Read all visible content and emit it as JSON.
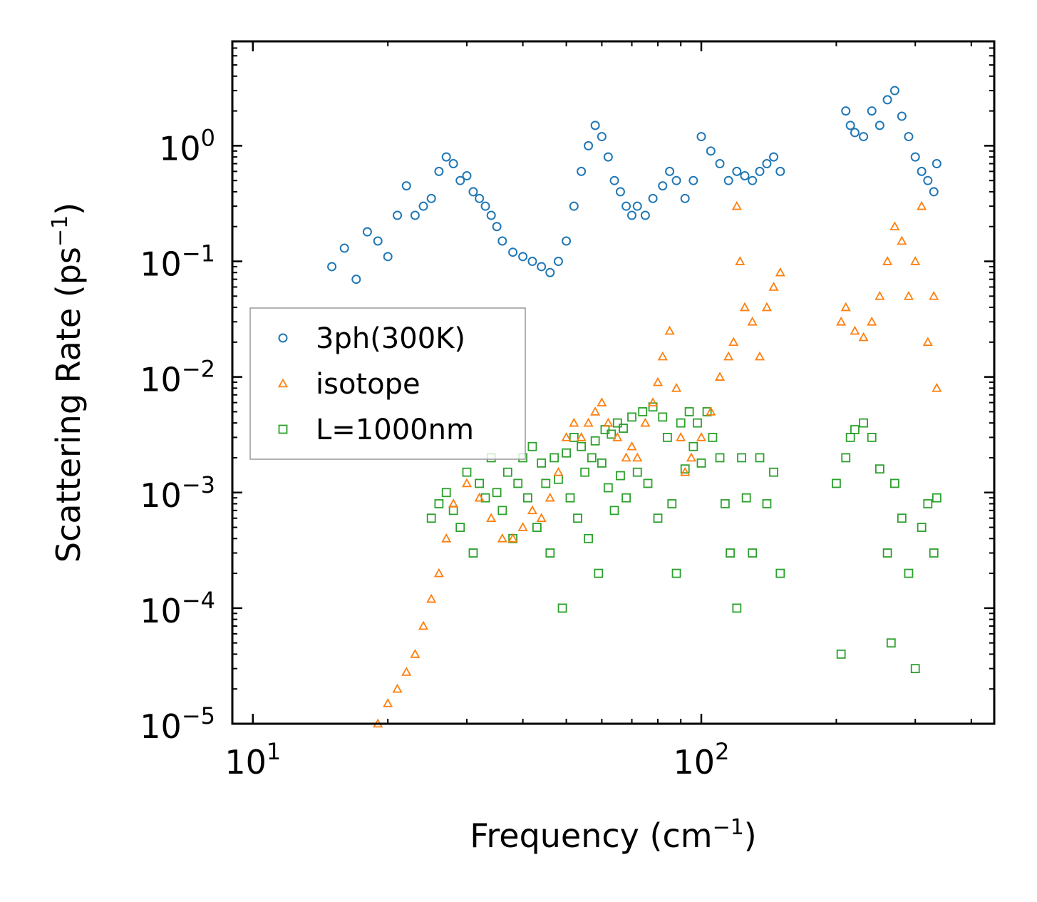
{
  "chart_data": {
    "type": "scatter",
    "xscale": "log",
    "yscale": "log",
    "xlabel": "Frequency (cm⁻¹)",
    "xlabel_parts": [
      "Frequency (cm",
      "−1",
      ")"
    ],
    "ylabel": "Scattering Rate (ps⁻¹)",
    "ylabel_parts": [
      "Scattering Rate (ps",
      "−1",
      ")"
    ],
    "xlim": [
      9,
      450
    ],
    "ylim": [
      1e-05,
      8
    ],
    "xticks": [
      {
        "value": 10,
        "base": "10",
        "exp": "1"
      },
      {
        "value": 100,
        "base": "10",
        "exp": "2"
      }
    ],
    "yticks": [
      {
        "value": 1,
        "base": "10",
        "exp": "0"
      },
      {
        "value": 0.1,
        "base": "10",
        "exp": "−1"
      },
      {
        "value": 0.01,
        "base": "10",
        "exp": "−2"
      },
      {
        "value": 0.001,
        "base": "10",
        "exp": "−3"
      },
      {
        "value": 0.0001,
        "base": "10",
        "exp": "−4"
      },
      {
        "value": 1e-05,
        "base": "10",
        "exp": "−5"
      }
    ],
    "legend": {
      "location": "center-left",
      "entries": [
        "3ph(300K)",
        "isotope",
        "L=1000nm"
      ]
    },
    "series": [
      {
        "name": "3ph(300K)",
        "marker": "circle",
        "color": "#1f77b4",
        "points": [
          [
            15,
            0.09
          ],
          [
            16,
            0.13
          ],
          [
            17,
            0.07
          ],
          [
            18,
            0.18
          ],
          [
            19,
            0.15
          ],
          [
            20,
            0.11
          ],
          [
            21,
            0.25
          ],
          [
            22,
            0.45
          ],
          [
            23,
            0.25
          ],
          [
            24,
            0.3
          ],
          [
            25,
            0.35
          ],
          [
            26,
            0.6
          ],
          [
            27,
            0.8
          ],
          [
            28,
            0.7
          ],
          [
            29,
            0.5
          ],
          [
            30,
            0.55
          ],
          [
            31,
            0.4
          ],
          [
            32,
            0.35
          ],
          [
            33,
            0.3
          ],
          [
            34,
            0.25
          ],
          [
            35,
            0.2
          ],
          [
            36,
            0.15
          ],
          [
            38,
            0.12
          ],
          [
            40,
            0.11
          ],
          [
            42,
            0.1
          ],
          [
            44,
            0.09
          ],
          [
            46,
            0.08
          ],
          [
            48,
            0.1
          ],
          [
            50,
            0.15
          ],
          [
            52,
            0.3
          ],
          [
            54,
            0.6
          ],
          [
            56,
            1.0
          ],
          [
            58,
            1.5
          ],
          [
            60,
            1.2
          ],
          [
            62,
            0.8
          ],
          [
            64,
            0.5
          ],
          [
            66,
            0.4
          ],
          [
            68,
            0.3
          ],
          [
            70,
            0.25
          ],
          [
            72,
            0.3
          ],
          [
            75,
            0.25
          ],
          [
            78,
            0.35
          ],
          [
            82,
            0.45
          ],
          [
            85,
            0.6
          ],
          [
            88,
            0.5
          ],
          [
            92,
            0.35
          ],
          [
            96,
            0.5
          ],
          [
            100,
            1.2
          ],
          [
            105,
            0.9
          ],
          [
            110,
            0.7
          ],
          [
            115,
            0.5
          ],
          [
            120,
            0.6
          ],
          [
            125,
            0.55
          ],
          [
            130,
            0.5
          ],
          [
            135,
            0.6
          ],
          [
            140,
            0.7
          ],
          [
            145,
            0.8
          ],
          [
            150,
            0.6
          ],
          [
            210,
            2.0
          ],
          [
            215,
            1.5
          ],
          [
            220,
            1.3
          ],
          [
            230,
            1.2
          ],
          [
            240,
            2.0
          ],
          [
            250,
            1.5
          ],
          [
            260,
            2.5
          ],
          [
            270,
            3.0
          ],
          [
            280,
            1.8
          ],
          [
            290,
            1.2
          ],
          [
            300,
            0.8
          ],
          [
            310,
            0.6
          ],
          [
            320,
            0.5
          ],
          [
            330,
            0.4
          ],
          [
            335,
            0.7
          ]
        ]
      },
      {
        "name": "isotope",
        "marker": "triangle",
        "color": "#ff7f0e",
        "points": [
          [
            19,
            1e-05
          ],
          [
            20,
            1.5e-05
          ],
          [
            21,
            2e-05
          ],
          [
            22,
            2.8e-05
          ],
          [
            23,
            4e-05
          ],
          [
            24,
            7e-05
          ],
          [
            25,
            0.00012
          ],
          [
            26,
            0.0002
          ],
          [
            27,
            0.0004
          ],
          [
            28,
            0.0008
          ],
          [
            30,
            0.0012
          ],
          [
            32,
            0.0009
          ],
          [
            34,
            0.0006
          ],
          [
            36,
            0.0004
          ],
          [
            38,
            0.0004
          ],
          [
            40,
            0.0005
          ],
          [
            42,
            0.0007
          ],
          [
            44,
            0.0006
          ],
          [
            46,
            0.0009
          ],
          [
            48,
            0.0015
          ],
          [
            50,
            0.003
          ],
          [
            52,
            0.004
          ],
          [
            54,
            0.003
          ],
          [
            56,
            0.004
          ],
          [
            58,
            0.005
          ],
          [
            60,
            0.006
          ],
          [
            62,
            0.004
          ],
          [
            65,
            0.003
          ],
          [
            68,
            0.002
          ],
          [
            70,
            0.0025
          ],
          [
            72,
            0.002
          ],
          [
            75,
            0.004
          ],
          [
            78,
            0.006
          ],
          [
            80,
            0.009
          ],
          [
            82,
            0.015
          ],
          [
            85,
            0.025
          ],
          [
            88,
            0.008
          ],
          [
            90,
            0.003
          ],
          [
            92,
            0.0015
          ],
          [
            95,
            0.002
          ],
          [
            100,
            0.003
          ],
          [
            105,
            0.005
          ],
          [
            110,
            0.01
          ],
          [
            115,
            0.015
          ],
          [
            118,
            0.02
          ],
          [
            120,
            0.3
          ],
          [
            122,
            0.1
          ],
          [
            125,
            0.04
          ],
          [
            130,
            0.03
          ],
          [
            135,
            0.015
          ],
          [
            140,
            0.04
          ],
          [
            145,
            0.06
          ],
          [
            150,
            0.08
          ],
          [
            205,
            0.03
          ],
          [
            210,
            0.04
          ],
          [
            220,
            0.025
          ],
          [
            230,
            0.022
          ],
          [
            240,
            0.03
          ],
          [
            250,
            0.05
          ],
          [
            260,
            0.1
          ],
          [
            270,
            0.2
          ],
          [
            280,
            0.15
          ],
          [
            290,
            0.05
          ],
          [
            300,
            0.1
          ],
          [
            310,
            0.3
          ],
          [
            320,
            0.02
          ],
          [
            330,
            0.05
          ],
          [
            335,
            0.008
          ]
        ]
      },
      {
        "name": "L=1000nm",
        "marker": "square",
        "color": "#2ca02c",
        "points": [
          [
            25,
            0.0006
          ],
          [
            26,
            0.0008
          ],
          [
            27,
            0.001
          ],
          [
            28,
            0.0007
          ],
          [
            29,
            0.0005
          ],
          [
            30,
            0.0015
          ],
          [
            31,
            0.0003
          ],
          [
            32,
            0.0012
          ],
          [
            33,
            0.0009
          ],
          [
            34,
            0.002
          ],
          [
            35,
            0.001
          ],
          [
            36,
            0.0007
          ],
          [
            37,
            0.0015
          ],
          [
            38,
            0.0004
          ],
          [
            39,
            0.0012
          ],
          [
            40,
            0.002
          ],
          [
            41,
            0.0009
          ],
          [
            42,
            0.0025
          ],
          [
            43,
            0.0005
          ],
          [
            44,
            0.0018
          ],
          [
            45,
            0.0012
          ],
          [
            46,
            0.0003
          ],
          [
            47,
            0.002
          ],
          [
            48,
            0.0013
          ],
          [
            49,
            0.0001
          ],
          [
            50,
            0.0022
          ],
          [
            51,
            0.0009
          ],
          [
            52,
            0.003
          ],
          [
            53,
            0.0006
          ],
          [
            54,
            0.0025
          ],
          [
            55,
            0.0015
          ],
          [
            56,
            0.0004
          ],
          [
            57,
            0.002
          ],
          [
            58,
            0.0028
          ],
          [
            59,
            0.0002
          ],
          [
            60,
            0.0018
          ],
          [
            61,
            0.0035
          ],
          [
            62,
            0.0011
          ],
          [
            63,
            0.0032
          ],
          [
            64,
            0.0007
          ],
          [
            65,
            0.004
          ],
          [
            66,
            0.0014
          ],
          [
            67,
            0.0036
          ],
          [
            68,
            0.0009
          ],
          [
            70,
            0.0045
          ],
          [
            72,
            0.0015
          ],
          [
            74,
            0.005
          ],
          [
            76,
            0.0012
          ],
          [
            78,
            0.0055
          ],
          [
            80,
            0.0006
          ],
          [
            82,
            0.0045
          ],
          [
            84,
            0.003
          ],
          [
            86,
            0.0008
          ],
          [
            88,
            0.0002
          ],
          [
            90,
            0.004
          ],
          [
            92,
            0.0016
          ],
          [
            94,
            0.005
          ],
          [
            96,
            0.0025
          ],
          [
            98,
            0.004
          ],
          [
            100,
            0.0018
          ],
          [
            103,
            0.005
          ],
          [
            106,
            0.003
          ],
          [
            110,
            0.002
          ],
          [
            113,
            0.0008
          ],
          [
            116,
            0.0003
          ],
          [
            120,
            0.0001
          ],
          [
            123,
            0.002
          ],
          [
            126,
            0.0009
          ],
          [
            130,
            0.0003
          ],
          [
            135,
            0.002
          ],
          [
            140,
            0.0008
          ],
          [
            145,
            0.0015
          ],
          [
            150,
            0.0002
          ],
          [
            200,
            0.0012
          ],
          [
            205,
            4e-05
          ],
          [
            210,
            0.002
          ],
          [
            215,
            0.003
          ],
          [
            220,
            0.0035
          ],
          [
            230,
            0.004
          ],
          [
            240,
            0.003
          ],
          [
            250,
            0.0016
          ],
          [
            260,
            0.0003
          ],
          [
            265,
            5e-05
          ],
          [
            270,
            0.0012
          ],
          [
            280,
            0.0006
          ],
          [
            290,
            0.0002
          ],
          [
            300,
            3e-05
          ],
          [
            310,
            0.0005
          ],
          [
            320,
            0.0008
          ],
          [
            330,
            0.0003
          ],
          [
            335,
            0.0009
          ]
        ]
      }
    ]
  }
}
